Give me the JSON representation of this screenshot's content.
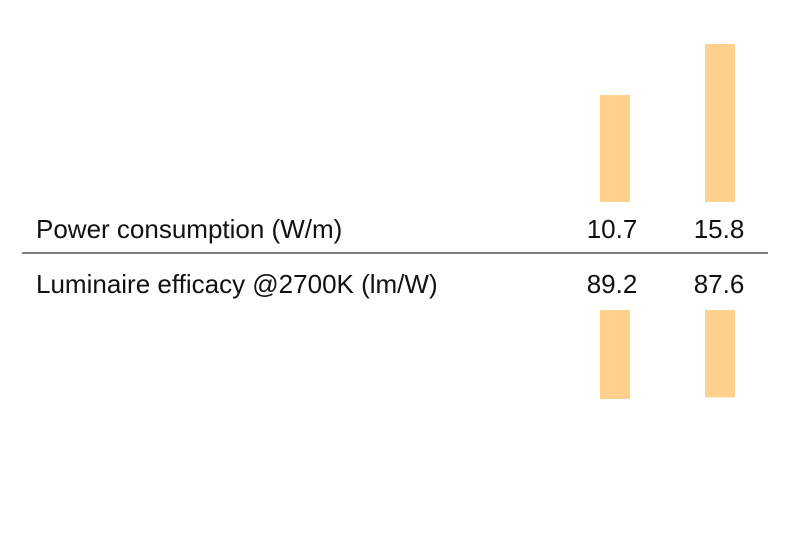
{
  "chart_data": {
    "type": "bar",
    "bar_color": "#FFD18C",
    "divider_color": "#333333",
    "columns": 2,
    "rows": [
      {
        "label": "Power consumption (W/m)",
        "values": [
          10.7,
          15.8
        ],
        "value_labels": [
          "10.7",
          "15.8"
        ],
        "direction": "up"
      },
      {
        "label": "Luminaire efficacy @2700K (lm/W)",
        "values": [
          89.2,
          87.6
        ],
        "value_labels": [
          "89.2",
          "87.6"
        ],
        "direction": "down"
      }
    ]
  }
}
